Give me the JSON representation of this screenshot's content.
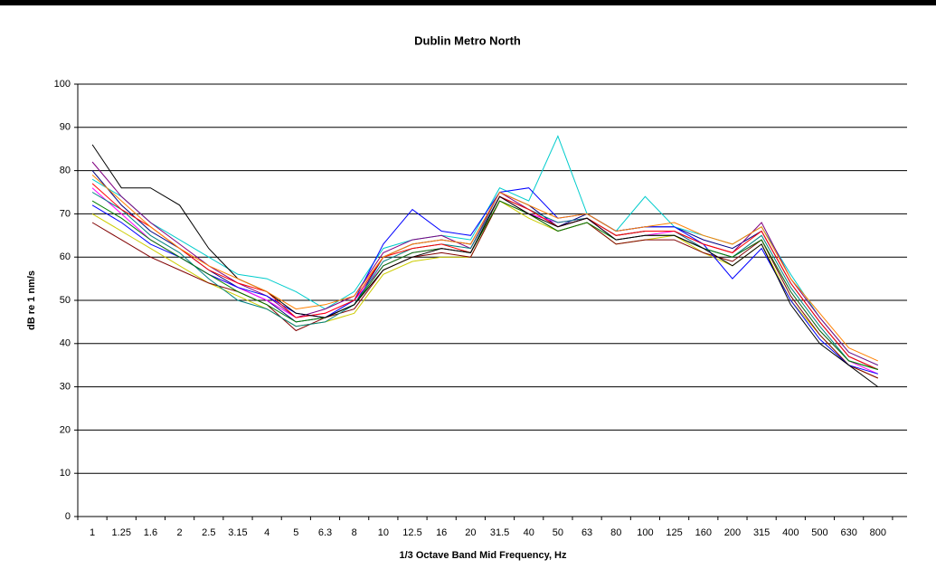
{
  "chart_data": {
    "type": "line",
    "title": "Dublin Metro North",
    "x_label": "1/3 Octave Band Mid Frequency, Hz",
    "y_label": "dB re 1 nm/s",
    "categories": [
      "1",
      "1.25",
      "1.6",
      "2",
      "2.5",
      "3.15",
      "4",
      "5",
      "6.3",
      "8",
      "10",
      "12.5",
      "16",
      "20",
      "31.5",
      "40",
      "50",
      "63",
      "80",
      "100",
      "125",
      "160",
      "200",
      "315",
      "400",
      "500",
      "630",
      "800"
    ],
    "ylim": [
      0,
      100
    ],
    "yticks": [
      0,
      10,
      20,
      30,
      40,
      50,
      60,
      70,
      80,
      90,
      100
    ],
    "grid": true,
    "series": [
      {
        "color": "#000080",
        "values": [
          80,
          72,
          66,
          62,
          57,
          53,
          50,
          45,
          46,
          49,
          60,
          63,
          64,
          63,
          75,
          72,
          67,
          70,
          66,
          67,
          67,
          64,
          62,
          66,
          54,
          45,
          37,
          34
        ]
      },
      {
        "color": "#ff00ff",
        "values": [
          76,
          70,
          64,
          60,
          56,
          53,
          50,
          46,
          47,
          50,
          58,
          61,
          62,
          61,
          74,
          70,
          68,
          69,
          64,
          65,
          66,
          62,
          60,
          64,
          52,
          43,
          36,
          33
        ]
      },
      {
        "color": "#cccc00",
        "values": [
          70,
          66,
          62,
          58,
          54,
          51,
          48,
          44,
          45,
          47,
          56,
          59,
          60,
          60,
          73,
          69,
          66,
          68,
          63,
          64,
          65,
          61,
          58,
          63,
          50,
          42,
          35,
          32
        ]
      },
      {
        "color": "#00cccc",
        "values": [
          78,
          74,
          68,
          64,
          60,
          56,
          55,
          52,
          48,
          52,
          62,
          64,
          65,
          64,
          76,
          73,
          88,
          70,
          66,
          74,
          67,
          65,
          63,
          67,
          56,
          46,
          38,
          35
        ]
      },
      {
        "color": "#800080",
        "values": [
          82,
          74,
          68,
          63,
          58,
          54,
          51,
          46,
          48,
          51,
          61,
          64,
          65,
          62,
          75,
          71,
          67,
          69,
          65,
          66,
          66,
          63,
          61,
          68,
          55,
          46,
          38,
          35
        ]
      },
      {
        "color": "#800000",
        "values": [
          68,
          64,
          60,
          57,
          54,
          52,
          49,
          43,
          46,
          48,
          57,
          60,
          61,
          60,
          73,
          70,
          66,
          68,
          63,
          64,
          64,
          61,
          59,
          64,
          51,
          42,
          35,
          32
        ]
      },
      {
        "color": "#008080",
        "values": [
          75,
          71,
          65,
          61,
          55,
          50,
          48,
          44,
          45,
          49,
          59,
          62,
          63,
          62,
          74,
          71,
          68,
          69,
          65,
          66,
          66,
          62,
          60,
          65,
          53,
          44,
          36,
          34
        ]
      },
      {
        "color": "#0000ff",
        "values": [
          72,
          68,
          63,
          60,
          56,
          53,
          51,
          47,
          46,
          50,
          63,
          71,
          66,
          65,
          75,
          76,
          69,
          70,
          66,
          67,
          67,
          63,
          55,
          62,
          50,
          41,
          35,
          33
        ]
      },
      {
        "color": "#ff0000",
        "values": [
          77,
          71,
          67,
          62,
          57,
          54,
          52,
          46,
          47,
          50,
          60,
          62,
          63,
          61,
          74,
          71,
          67,
          69,
          65,
          66,
          66,
          63,
          61,
          66,
          54,
          45,
          37,
          34
        ]
      },
      {
        "color": "#008000",
        "values": [
          73,
          69,
          64,
          60,
          56,
          52,
          49,
          45,
          46,
          49,
          58,
          61,
          62,
          61,
          73,
          70,
          66,
          68,
          64,
          65,
          65,
          62,
          60,
          64,
          52,
          43,
          36,
          34
        ]
      },
      {
        "color": "#000000",
        "values": [
          86,
          76,
          76,
          72,
          62,
          55,
          52,
          47,
          46,
          49,
          57,
          60,
          62,
          61,
          74,
          70,
          67,
          69,
          64,
          65,
          65,
          62,
          58,
          63,
          49,
          40,
          35,
          30
        ]
      },
      {
        "color": "#ff8000",
        "values": [
          79,
          73,
          67,
          62,
          58,
          55,
          52,
          48,
          49,
          51,
          60,
          63,
          64,
          63,
          75,
          72,
          69,
          70,
          66,
          67,
          68,
          65,
          63,
          67,
          55,
          47,
          39,
          36
        ]
      }
    ]
  }
}
